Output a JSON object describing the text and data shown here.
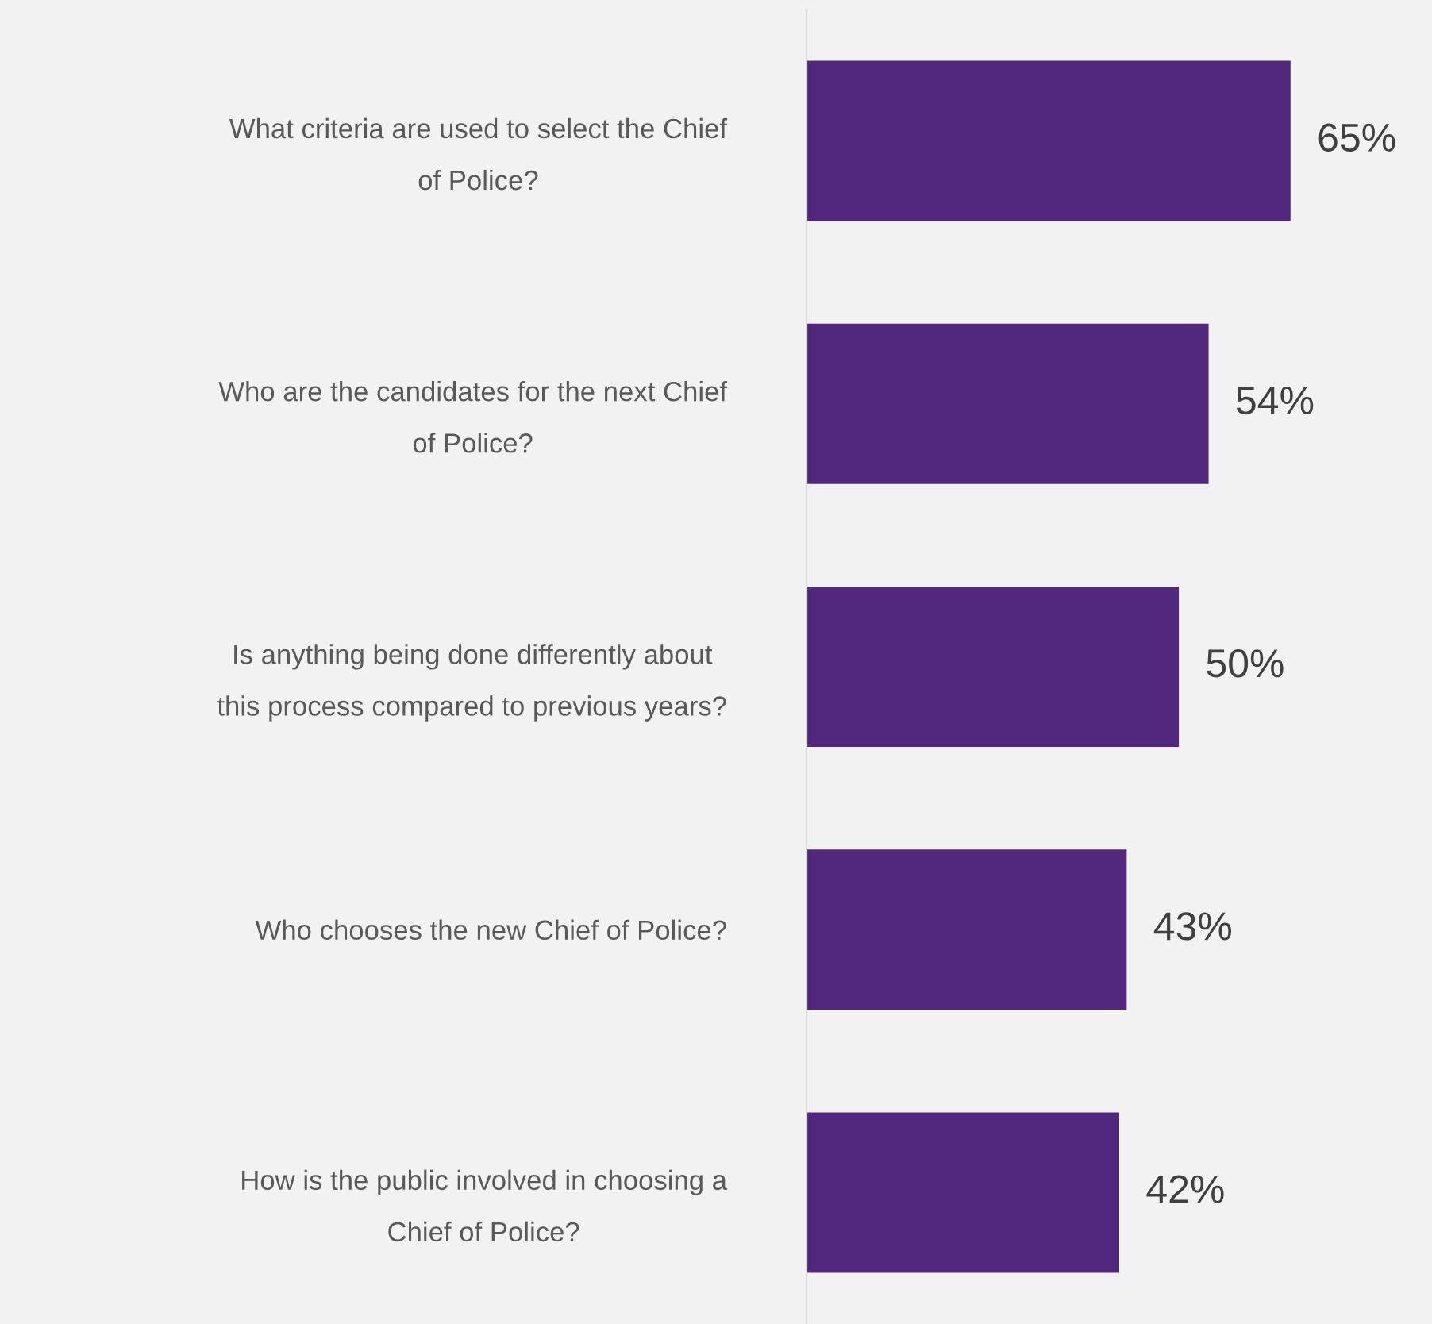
{
  "chart_data": {
    "type": "bar",
    "orientation": "horizontal",
    "categories": [
      "What criteria are used to select the Chief\nof Police?",
      "Who are the candidates for the next Chief\nof Police?",
      "Is anything being done differently about\nthis process compared to previous years?",
      "Who chooses the new Chief of Police?",
      "How is the public involved in choosing a\nChief of Police?"
    ],
    "values": [
      65,
      54,
      50,
      43,
      42
    ],
    "color": "#52277e",
    "value_labels": [
      "65%",
      "54%",
      "50%",
      "43%",
      "42%"
    ],
    "xlim": [
      0,
      84
    ],
    "grid": false,
    "legend": false,
    "tick_labels": "y"
  }
}
